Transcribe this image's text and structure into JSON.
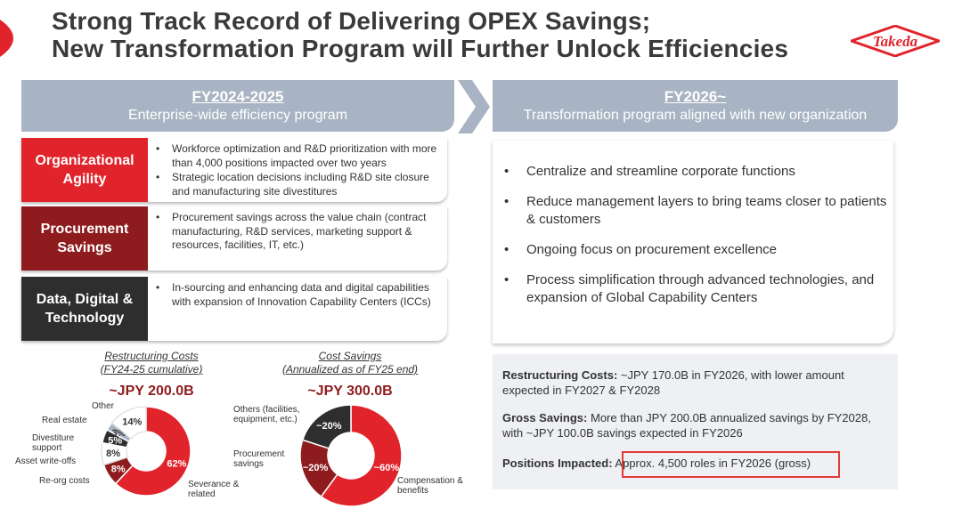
{
  "title": {
    "line1": "Strong Track Record of Delivering OPEX Savings;",
    "line2": "New Transformation Program will Further Unlock Efficiencies"
  },
  "logo": {
    "text": "Takeda",
    "color": "#e1242b"
  },
  "left_header": {
    "period": "FY2024-2025",
    "subtitle": "Enterprise-wide efficiency program"
  },
  "right_header": {
    "period": "FY2026~",
    "subtitle": "Transformation program aligned with new organization"
  },
  "pillars": [
    {
      "label": "Organizational Agility",
      "color": "#e1242b",
      "bullets": [
        "Workforce optimization and R&D prioritization with more than 4,000 positions impacted over two years",
        "Strategic location decisions including R&D site closure and manufacturing site divestitures"
      ]
    },
    {
      "label": "Procurement Savings",
      "color": "#8e1c1e",
      "bullets": [
        "Procurement savings across the value chain (contract manufacturing, R&D services, marketing support & resources, facilities, IT, etc.)"
      ]
    },
    {
      "label": "Data, Digital & Technology",
      "color": "#2e2e2e",
      "bullets": [
        "In-sourcing and enhancing data and digital capabilities with expansion of Innovation Capability Centers (ICCs)"
      ]
    }
  ],
  "transformation_bullets": [
    "Centralize and streamline corporate functions",
    "Reduce management layers to bring teams closer to patients & customers",
    "Ongoing focus on procurement excellence",
    "Process simplification through advanced technologies, and expansion of Global Capability Centers"
  ],
  "summary": {
    "restructuring_label": "Restructuring Costs:",
    "restructuring_text": " ~JPY 170.0B in FY2026, with lower amount expected in FY2027 & FY2028",
    "savings_label": "Gross Savings:",
    "savings_text": " More than JPY 200.0B annualized savings by FY2028, with ~JPY 100.0B savings expected in FY2026",
    "positions_label": "Positions Impacted:",
    "positions_text": " Approx. 4,500 roles in FY2026 (gross)"
  },
  "chart_data": [
    {
      "type": "pie",
      "title": "Restructuring Costs",
      "subtitle": "(FY24-25 cumulative)",
      "total": "~JPY 200.0B",
      "slices": [
        {
          "name": "Severance & related",
          "value": 62,
          "label": "62%",
          "color": "#e1242b"
        },
        {
          "name": "Re-org costs",
          "value": 8,
          "label": "8%",
          "color": "#8e1c1e"
        },
        {
          "name": "Asset write-offs",
          "value": 8,
          "label": "8%",
          "color": "#ffffff"
        },
        {
          "name": "Divestiture support",
          "value": 5,
          "label": "5%",
          "color": "#2e2e2e"
        },
        {
          "name": "Real estate",
          "value": 3,
          "label": "3%",
          "color": "#a8b4c3"
        },
        {
          "name": "Other",
          "value": 14,
          "label": "14%",
          "color": "#ffffff"
        }
      ]
    },
    {
      "type": "pie",
      "title": "Cost Savings",
      "subtitle": "(Annualized as of FY25 end)",
      "total": "~JPY 300.0B",
      "slices": [
        {
          "name": "Compensation & benefits",
          "value": 60,
          "label": "~60%",
          "color": "#e1242b"
        },
        {
          "name": "Procurement savings",
          "value": 20,
          "label": "~20%",
          "color": "#8e1c1e"
        },
        {
          "name": "Others (facilities, equipment, etc.)",
          "value": 20,
          "label": "~20%",
          "color": "#2e2e2e"
        }
      ]
    }
  ]
}
